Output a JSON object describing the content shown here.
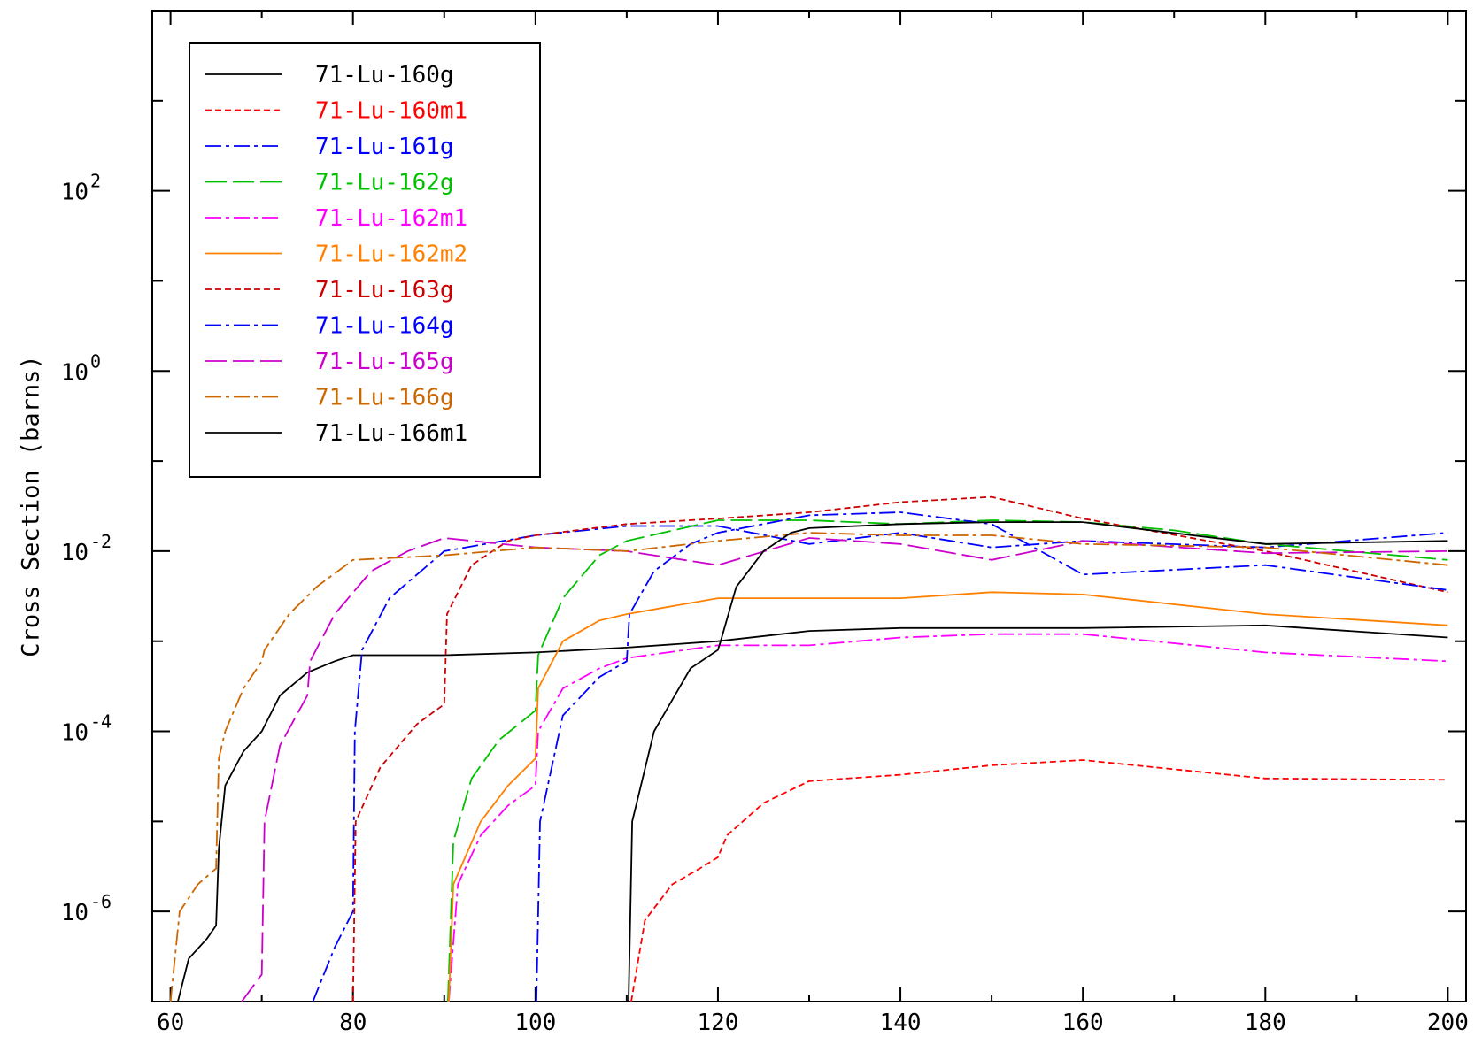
{
  "chart_data": {
    "type": "line",
    "title": "",
    "xlabel": "",
    "ylabel": "Cross Section (barns)",
    "xlim": [
      58,
      202
    ],
    "ylim": [
      1e-07,
      10000
    ],
    "y_scale": "log",
    "x_ticks": [
      60,
      80,
      100,
      120,
      140,
      160,
      180,
      200
    ],
    "x_tick_labels": [
      "60",
      "80",
      "100",
      "120",
      "140",
      "160",
      "180",
      "200"
    ],
    "y_major_ticks": [
      {
        "value": 1e-06,
        "base": "10",
        "exp": "-6"
      },
      {
        "value": 0.0001,
        "base": "10",
        "exp": "-4"
      },
      {
        "value": 0.01,
        "base": "10",
        "exp": "-2"
      },
      {
        "value": 1,
        "base": "10",
        "exp": "0"
      },
      {
        "value": 100,
        "base": "10",
        "exp": "2"
      }
    ],
    "y_minor_ticks": [
      1e-05,
      0.001,
      0.1,
      10,
      1000
    ],
    "grid": false,
    "legend_position": "top-left",
    "series": [
      {
        "name": "71-Lu-160g",
        "color": "#000000",
        "dash": "solid",
        "points": [
          [
            60.8,
            1e-07
          ],
          [
            62,
            3e-07
          ],
          [
            64,
            5e-07
          ],
          [
            65,
            7e-07
          ],
          [
            65.3,
            5e-06
          ],
          [
            66,
            2.5e-05
          ],
          [
            68,
            6e-05
          ],
          [
            70,
            0.0001
          ],
          [
            72,
            0.00025
          ],
          [
            75,
            0.00045
          ],
          [
            78,
            0.0006
          ],
          [
            80,
            0.0007
          ],
          [
            90,
            0.0007
          ],
          [
            100,
            0.00075
          ],
          [
            110,
            0.00085
          ],
          [
            120,
            0.001
          ],
          [
            130,
            0.0013
          ],
          [
            140,
            0.0014
          ],
          [
            150,
            0.0014
          ],
          [
            160,
            0.0014
          ],
          [
            180,
            0.0015
          ],
          [
            200,
            0.0011
          ]
        ]
      },
      {
        "name": "71-Lu-160m1",
        "color": "#ff0000",
        "dash": "dash",
        "points": [
          [
            110.5,
            1e-07
          ],
          [
            112,
            8e-07
          ],
          [
            115,
            2e-06
          ],
          [
            118,
            3e-06
          ],
          [
            120,
            4e-06
          ],
          [
            121,
            7e-06
          ],
          [
            125,
            1.6e-05
          ],
          [
            130,
            2.8e-05
          ],
          [
            140,
            3.3e-05
          ],
          [
            150,
            4.2e-05
          ],
          [
            160,
            4.8e-05
          ],
          [
            180,
            3e-05
          ],
          [
            200,
            2.9e-05
          ]
        ]
      },
      {
        "name": "71-Lu-161g",
        "color": "#0000ff",
        "dash": "dashdot",
        "points": [
          [
            75.6,
            1e-07
          ],
          [
            78,
            4e-07
          ],
          [
            80,
            1e-06
          ],
          [
            80.2,
            0.0001
          ],
          [
            81,
            0.0008
          ],
          [
            84,
            0.003
          ],
          [
            90,
            0.01
          ],
          [
            100,
            0.015
          ],
          [
            110,
            0.019
          ],
          [
            120,
            0.019
          ],
          [
            130,
            0.012
          ],
          [
            140,
            0.016
          ],
          [
            150,
            0.011
          ],
          [
            160,
            0.013
          ],
          [
            180,
            0.011
          ],
          [
            200,
            0.016
          ]
        ]
      },
      {
        "name": "71-Lu-162g",
        "color": "#00c000",
        "dash": "longdash",
        "points": [
          [
            90.4,
            1e-07
          ],
          [
            91,
            6e-06
          ],
          [
            93,
            3e-05
          ],
          [
            96,
            8e-05
          ],
          [
            100,
            0.00017
          ],
          [
            100.3,
            0.0007
          ],
          [
            103,
            0.003
          ],
          [
            107,
            0.009
          ],
          [
            110,
            0.013
          ],
          [
            120,
            0.022
          ],
          [
            130,
            0.022
          ],
          [
            140,
            0.02
          ],
          [
            150,
            0.022
          ],
          [
            160,
            0.021
          ],
          [
            170,
            0.017
          ],
          [
            180,
            0.012
          ],
          [
            200,
            0.008
          ]
        ]
      },
      {
        "name": "71-Lu-162m1",
        "color": "#ff00ff",
        "dash": "dashdot",
        "points": [
          [
            90.5,
            1e-07
          ],
          [
            91.5,
            2e-06
          ],
          [
            94,
            7e-06
          ],
          [
            97,
            1.5e-05
          ],
          [
            100,
            2.5e-05
          ],
          [
            100.3,
            0.0001
          ],
          [
            103,
            0.0003
          ],
          [
            107,
            0.0005
          ],
          [
            110,
            0.00065
          ],
          [
            120,
            0.0009
          ],
          [
            130,
            0.0009
          ],
          [
            140,
            0.0011
          ],
          [
            150,
            0.0012
          ],
          [
            160,
            0.0012
          ],
          [
            180,
            0.00075
          ],
          [
            200,
            0.0006
          ]
        ]
      },
      {
        "name": "71-Lu-162m2",
        "color": "#ff8000",
        "dash": "solid",
        "points": [
          [
            90.5,
            1e-07
          ],
          [
            91,
            2e-06
          ],
          [
            94,
            1e-05
          ],
          [
            97,
            2.5e-05
          ],
          [
            100,
            5e-05
          ],
          [
            100.3,
            0.0003
          ],
          [
            103,
            0.001
          ],
          [
            107,
            0.0017
          ],
          [
            110,
            0.002
          ],
          [
            120,
            0.003
          ],
          [
            130,
            0.003
          ],
          [
            140,
            0.003
          ],
          [
            150,
            0.0035
          ],
          [
            160,
            0.0033
          ],
          [
            180,
            0.002
          ],
          [
            200,
            0.0015
          ]
        ]
      },
      {
        "name": "71-Lu-163g",
        "color": "#cc0000",
        "dash": "dash",
        "points": [
          [
            80,
            1e-07
          ],
          [
            80.3,
            1e-05
          ],
          [
            83,
            4e-05
          ],
          [
            87,
            0.00012
          ],
          [
            90,
            0.0002
          ],
          [
            90.3,
            0.002
          ],
          [
            93,
            0.007
          ],
          [
            97,
            0.013
          ],
          [
            100,
            0.015
          ],
          [
            110,
            0.02
          ],
          [
            120,
            0.023
          ],
          [
            130,
            0.027
          ],
          [
            140,
            0.035
          ],
          [
            150,
            0.04
          ],
          [
            160,
            0.023
          ],
          [
            180,
            0.01
          ],
          [
            200,
            0.0035
          ]
        ]
      },
      {
        "name": "71-Lu-164g",
        "color": "#0000ff",
        "dash": "dashdot",
        "points": [
          [
            100.1,
            1e-07
          ],
          [
            100.5,
            1e-05
          ],
          [
            103,
            0.00015
          ],
          [
            107,
            0.0004
          ],
          [
            110,
            0.0006
          ],
          [
            110.3,
            0.002
          ],
          [
            113,
            0.006
          ],
          [
            117,
            0.012
          ],
          [
            120,
            0.016
          ],
          [
            130,
            0.025
          ],
          [
            140,
            0.027
          ],
          [
            150,
            0.02
          ],
          [
            160,
            0.0055
          ],
          [
            180,
            0.007
          ],
          [
            200,
            0.0037
          ]
        ]
      },
      {
        "name": "71-Lu-165g",
        "color": "#cc00cc",
        "dash": "longdash",
        "points": [
          [
            67.8,
            1e-07
          ],
          [
            70,
            2e-07
          ],
          [
            70.3,
            1e-05
          ],
          [
            72,
            7e-05
          ],
          [
            75,
            0.00025
          ],
          [
            75.3,
            0.0006
          ],
          [
            78,
            0.002
          ],
          [
            82,
            0.006
          ],
          [
            86,
            0.01
          ],
          [
            90,
            0.014
          ],
          [
            100,
            0.011
          ],
          [
            110,
            0.01
          ],
          [
            120,
            0.007
          ],
          [
            130,
            0.014
          ],
          [
            140,
            0.012
          ],
          [
            150,
            0.008
          ],
          [
            160,
            0.013
          ],
          [
            180,
            0.0095
          ],
          [
            200,
            0.01
          ]
        ]
      },
      {
        "name": "71-Lu-166g",
        "color": "#cc6600",
        "dash": "dashdot",
        "points": [
          [
            60,
            1e-07
          ],
          [
            61,
            1e-06
          ],
          [
            63,
            2e-06
          ],
          [
            65,
            3e-06
          ],
          [
            65.3,
            5e-05
          ],
          [
            66,
            0.0001
          ],
          [
            68,
            0.0003
          ],
          [
            70,
            0.0006
          ],
          [
            70.3,
            0.0008
          ],
          [
            73,
            0.002
          ],
          [
            76,
            0.004
          ],
          [
            80,
            0.008
          ],
          [
            90,
            0.009
          ],
          [
            100,
            0.011
          ],
          [
            110,
            0.01
          ],
          [
            120,
            0.013
          ],
          [
            130,
            0.016
          ],
          [
            140,
            0.015
          ],
          [
            150,
            0.015
          ],
          [
            160,
            0.012
          ],
          [
            180,
            0.011
          ],
          [
            200,
            0.007
          ]
        ]
      },
      {
        "name": "71-Lu-166m1",
        "color": "#000000",
        "dash": "solid",
        "points": [
          [
            110.2,
            1e-07
          ],
          [
            110.6,
            1e-05
          ],
          [
            113,
            0.0001
          ],
          [
            117,
            0.0005
          ],
          [
            120,
            0.0008
          ],
          [
            120.3,
            0.001
          ],
          [
            122,
            0.004
          ],
          [
            125,
            0.01
          ],
          [
            128,
            0.016
          ],
          [
            130,
            0.018
          ],
          [
            140,
            0.02
          ],
          [
            150,
            0.021
          ],
          [
            160,
            0.021
          ],
          [
            180,
            0.012
          ],
          [
            200,
            0.013
          ]
        ]
      }
    ]
  }
}
